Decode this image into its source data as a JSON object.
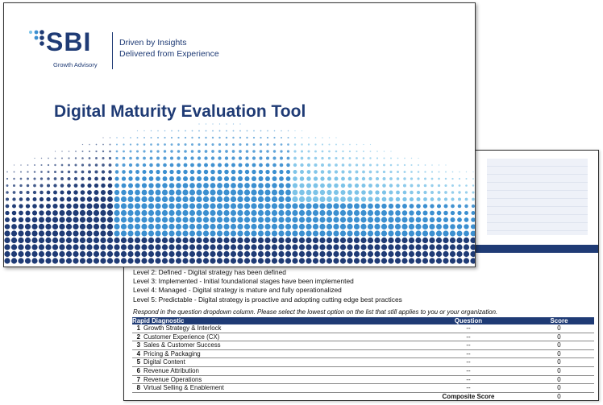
{
  "slide": {
    "logo_text": "SBI",
    "logo_subtext": "Growth Advisory",
    "tagline_line1": "Driven by Insights",
    "tagline_line2": "Delivered from Experience",
    "title": "Digital Maturity Evaluation Tool"
  },
  "sheet": {
    "levels": [
      "Level 2: Defined - Digital strategy has been defined",
      "Level 3: Implemented - Initial foundational stages have been implemented",
      "Level 4: Managed - Digital strategy is mature and fully operationalized",
      "Level 5: Predictable - Digital strategy is proactive and adopting cutting edge best practices"
    ],
    "instructions": "Respond in the question dropdown column. Please select the lowest option on the list that still applies to you or your organization.",
    "table": {
      "headers": {
        "diagnostic": "Rapid Diagnostic",
        "question": "Question",
        "score": "Score"
      },
      "rows": [
        {
          "num": "1",
          "label": "Growth Strategy & Interlock",
          "question": "--",
          "score": "0"
        },
        {
          "num": "2",
          "label": "Customer Experience (CX)",
          "question": "--",
          "score": "0"
        },
        {
          "num": "3",
          "label": "Sales & Customer Success",
          "question": "--",
          "score": "0"
        },
        {
          "num": "4",
          "label": "Pricing & Packaging",
          "question": "--",
          "score": "0"
        },
        {
          "num": "5",
          "label": "Digital Content",
          "question": "--",
          "score": "0"
        },
        {
          "num": "6",
          "label": "Revenue Attribution",
          "question": "--",
          "score": "0"
        },
        {
          "num": "7",
          "label": "Revenue Operations",
          "question": "--",
          "score": "0"
        },
        {
          "num": "8",
          "label": "Virtual Selling & Enablement",
          "question": "--",
          "score": "0"
        }
      ],
      "composite_label": "Composite Score",
      "composite_value": "0"
    }
  },
  "colors": {
    "brand_navy": "#1f3b75",
    "dot_light": "#7cc3e8",
    "dot_mid": "#3b8fd0",
    "dot_dark": "#1f3b75"
  }
}
